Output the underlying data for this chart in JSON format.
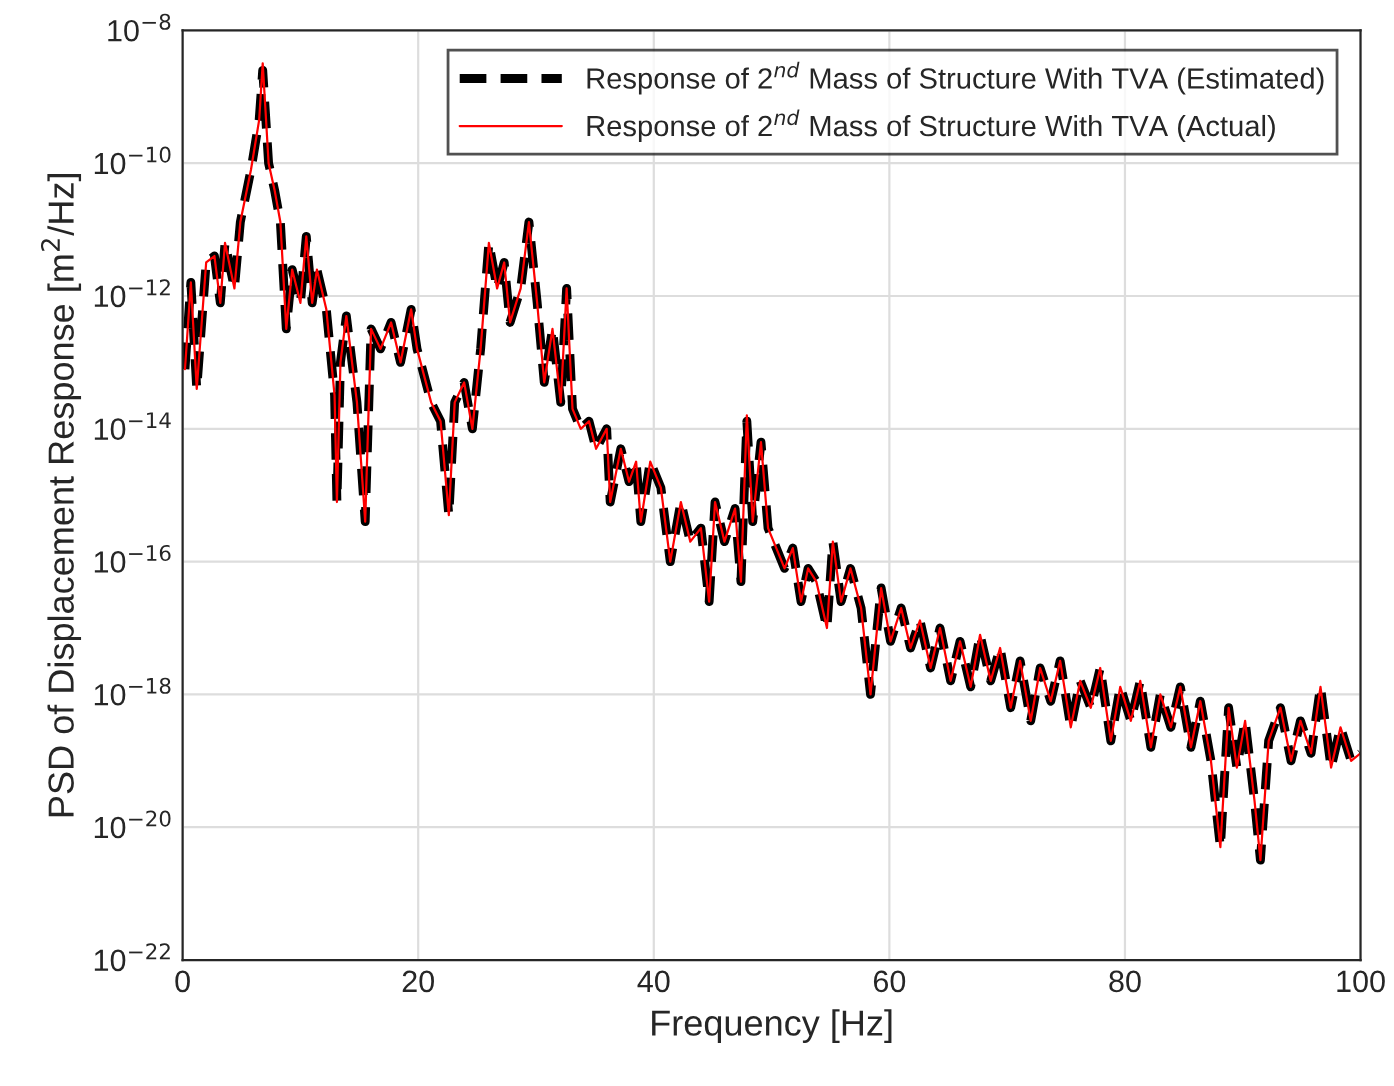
{
  "chart_data": {
    "type": "line",
    "xlabel": "Frequency [Hz]",
    "ylabel": "PSD of Displacement Response [m$^{2}$/Hz]",
    "x": [
      0.2,
      0.7,
      1.2,
      2.0,
      2.7,
      3.2,
      3.6,
      4.4,
      4.9,
      5.8,
      6.5,
      6.8,
      7.3,
      7.8,
      8.3,
      8.8,
      9.3,
      10.0,
      10.5,
      11.0,
      11.4,
      12.2,
      12.9,
      13.1,
      13.4,
      13.9,
      14.8,
      15.5,
      16.0,
      16.8,
      17.7,
      18.5,
      19.4,
      19.9,
      21.1,
      21.9,
      22.6,
      23.1,
      23.9,
      24.6,
      25.3,
      26.0,
      26.7,
      27.3,
      27.8,
      28.7,
      29.4,
      30.1,
      30.7,
      31.4,
      32.1,
      32.6,
      33.1,
      33.8,
      34.5,
      35.1,
      36.0,
      36.3,
      37.2,
      37.9,
      38.5,
      38.9,
      39.7,
      40.6,
      41.4,
      42.3,
      43.1,
      44.0,
      44.7,
      45.2,
      46.0,
      46.9,
      47.4,
      47.9,
      48.4,
      49.1,
      49.7,
      50.4,
      51.1,
      51.8,
      52.5,
      53.1,
      53.8,
      54.7,
      55.2,
      55.9,
      56.7,
      57.6,
      58.4,
      59.3,
      60.1,
      61.0,
      61.8,
      62.6,
      63.5,
      64.3,
      65.2,
      66.0,
      66.9,
      67.7,
      68.6,
      69.4,
      70.3,
      71.1,
      72.0,
      72.8,
      73.7,
      74.5,
      75.4,
      76.2,
      77.1,
      77.9,
      78.8,
      79.6,
      80.5,
      81.3,
      82.2,
      83.0,
      83.9,
      84.7,
      85.6,
      86.4,
      87.3,
      88.1,
      88.8,
      89.5,
      90.2,
      91.0,
      91.5,
      92.2,
      93.2,
      94.1,
      94.9,
      95.8,
      96.6,
      97.5,
      98.3,
      99.2,
      100
    ],
    "series": [
      {
        "name": "Response of 2$^{nd}$ Mass of Structure With TVA (Estimated)",
        "color": "#000000",
        "line_style": "dashed",
        "values": [
          7.9e-14,
          1.6e-12,
          4e-14,
          3.2e-12,
          4e-12,
          7.9e-13,
          6.3e-12,
          1.3e-12,
          1.3e-11,
          7.9e-11,
          4.5e-10,
          2.5e-09,
          1e-10,
          4e-11,
          1.3e-11,
          3.2e-13,
          2.5e-12,
          7.9e-13,
          7.9e-12,
          7.9e-13,
          2.5e-12,
          6.3e-13,
          3.2e-14,
          7.9e-16,
          1e-13,
          5e-13,
          2.5e-14,
          4e-16,
          3.2e-13,
          1.6e-13,
          4e-13,
          1e-13,
          6.3e-13,
          1.6e-13,
          2.5e-14,
          1.3e-14,
          5e-16,
          2.5e-14,
          5e-14,
          1e-14,
          1.6e-13,
          6.3e-12,
          1.3e-12,
          3.2e-12,
          4e-13,
          1.3e-12,
          1.3e-11,
          7.9e-13,
          5e-14,
          3.2e-13,
          2.5e-14,
          1.3e-12,
          2e-14,
          1e-14,
          1.3e-14,
          5e-15,
          1e-14,
          7.9e-16,
          5e-15,
          1.6e-15,
          3.2e-15,
          4e-16,
          3.2e-15,
          1.3e-15,
          1e-16,
          7.9e-16,
          2e-16,
          3.2e-16,
          2.5e-17,
          7.9e-16,
          2e-16,
          6.3e-16,
          5e-17,
          1.3e-14,
          4e-16,
          6.3e-15,
          3.2e-16,
          1.6e-16,
          7.9e-17,
          1.6e-16,
          2.5e-17,
          7.9e-17,
          5e-17,
          1e-17,
          2e-16,
          2.5e-17,
          7.9e-17,
          2e-17,
          1e-18,
          4e-17,
          6.3e-18,
          2e-17,
          5e-18,
          1.3e-17,
          2.5e-18,
          1e-17,
          1.6e-18,
          6.3e-18,
          1.3e-18,
          7.9e-18,
          1.6e-18,
          5e-18,
          6.3e-19,
          3.2e-18,
          4e-19,
          2.5e-18,
          7.9e-19,
          3.2e-18,
          3.2e-19,
          1.6e-18,
          6.3e-19,
          2.5e-18,
          2e-19,
          1.3e-18,
          4e-19,
          1.6e-18,
          1.6e-19,
          1e-18,
          3.2e-19,
          1.3e-18,
          1.6e-19,
          7.9e-19,
          1e-19,
          5e-21,
          6.3e-19,
          7.9e-20,
          4e-19,
          2.5e-20,
          3.2e-21,
          2e-19,
          6.3e-19,
          1e-19,
          4e-19,
          1.3e-19,
          1.3e-18,
          7.9e-20,
          3.2e-19,
          1e-19,
          1.3e-19
        ]
      },
      {
        "name": "Response of 2$^{nd}$ Mass of Structure With TVA (Actual)",
        "color": "#ff0000",
        "line_style": "solid",
        "values": [
          7.9e-14,
          1.6e-12,
          4e-14,
          3.2e-12,
          4e-12,
          7.9e-13,
          6.3e-12,
          1.3e-12,
          1.3e-11,
          7.9e-11,
          4.5e-10,
          3.2e-09,
          1e-10,
          4e-11,
          1.3e-11,
          3.2e-13,
          2.5e-12,
          7.9e-13,
          7.9e-12,
          7.9e-13,
          2.5e-12,
          6.3e-13,
          3.2e-14,
          7.9e-16,
          1e-13,
          5e-13,
          2.5e-14,
          4e-16,
          3.2e-13,
          1.6e-13,
          4e-13,
          1e-13,
          6.3e-13,
          1.6e-13,
          2.5e-14,
          1.3e-14,
          5e-16,
          2.5e-14,
          5e-14,
          1e-14,
          1.6e-13,
          6.3e-12,
          1.3e-12,
          3.2e-12,
          4e-13,
          1.3e-12,
          1.3e-11,
          7.9e-13,
          5e-14,
          3.2e-13,
          2.5e-14,
          1.3e-12,
          2e-14,
          1e-14,
          1.3e-14,
          5e-15,
          1e-14,
          7.9e-16,
          5e-15,
          1.6e-15,
          3.2e-15,
          4e-16,
          3.2e-15,
          1.3e-15,
          1e-16,
          7.9e-16,
          2e-16,
          3.2e-16,
          2.5e-17,
          7.9e-16,
          2e-16,
          6.3e-16,
          5e-17,
          1.6e-14,
          4e-16,
          6.3e-15,
          3.2e-16,
          1.6e-16,
          7.9e-17,
          1.6e-16,
          2.5e-17,
          7.9e-17,
          5e-17,
          1e-17,
          2e-16,
          2.5e-17,
          7.9e-17,
          2e-17,
          1e-18,
          4e-17,
          6.3e-18,
          2e-17,
          5e-18,
          1.3e-17,
          2.5e-18,
          1e-17,
          1.6e-18,
          6.3e-18,
          1.3e-18,
          7.9e-18,
          1.6e-18,
          5e-18,
          6.3e-19,
          3.2e-18,
          4e-19,
          2.5e-18,
          7.9e-19,
          3.2e-18,
          3.2e-19,
          1.6e-18,
          6.3e-19,
          2.5e-18,
          2e-19,
          1.3e-18,
          4e-19,
          1.6e-18,
          1.6e-19,
          1e-18,
          3.2e-19,
          1.3e-18,
          1.6e-19,
          7.9e-19,
          1e-19,
          5e-21,
          6.3e-19,
          7.9e-20,
          4e-19,
          2.5e-20,
          3.2e-21,
          2e-19,
          6.3e-19,
          1e-19,
          4e-19,
          1.3e-19,
          1.3e-18,
          7.9e-20,
          3.2e-19,
          1e-19,
          1.3e-19
        ]
      }
    ],
    "xlim": [
      0,
      100
    ],
    "xticks": [
      0,
      20,
      40,
      60,
      80,
      100
    ],
    "ylim": [
      1e-22,
      1e-08
    ],
    "yticks": [
      {
        "value": 1e-22,
        "label": "10$^{−22}$"
      },
      {
        "value": 1e-20,
        "label": "10$^{−20}$"
      },
      {
        "value": 1e-18,
        "label": "10$^{−18}$"
      },
      {
        "value": 1e-16,
        "label": "10$^{−16}$"
      },
      {
        "value": 1e-14,
        "label": "10$^{−14}$"
      },
      {
        "value": 1e-12,
        "label": "10$^{−12}$"
      },
      {
        "value": 1e-10,
        "label": "10$^{−10}$"
      },
      {
        "value": 1e-08,
        "label": "10$^{−8}$"
      }
    ],
    "log": "y",
    "grid": true,
    "legend": "top right"
  }
}
